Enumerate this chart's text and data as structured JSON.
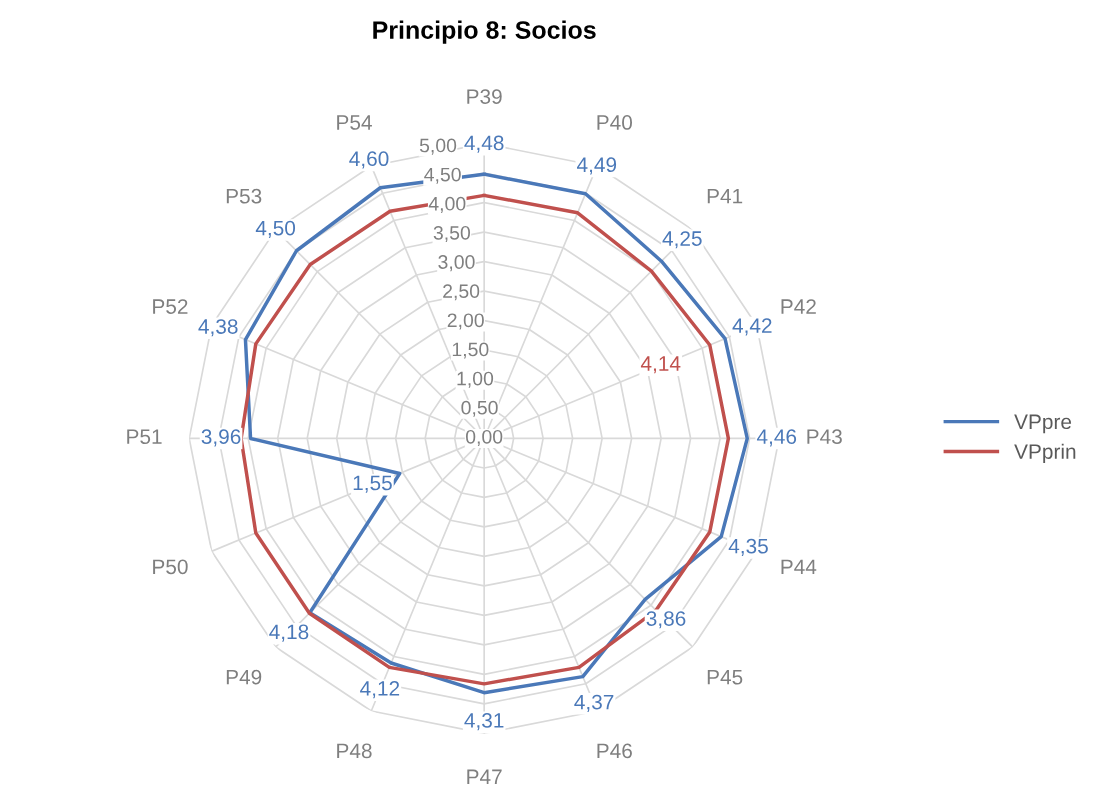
{
  "chart_data": {
    "type": "radar",
    "title": "Principio 8: Socios",
    "categories": [
      "P39",
      "P40",
      "P41",
      "P42",
      "P43",
      "P44",
      "P45",
      "P46",
      "P47",
      "P48",
      "P49",
      "P50",
      "P51",
      "P52",
      "P53",
      "P54"
    ],
    "ylim": [
      0,
      5
    ],
    "yticks": [
      {
        "value": 0,
        "label": "0,00"
      },
      {
        "value": 0.5,
        "label": "0,50"
      },
      {
        "value": 1,
        "label": "1,00"
      },
      {
        "value": 1.5,
        "label": "1,50"
      },
      {
        "value": 2,
        "label": "2,00"
      },
      {
        "value": 2.5,
        "label": "2,50"
      },
      {
        "value": 3,
        "label": "3,00"
      },
      {
        "value": 3.5,
        "label": "3,50"
      },
      {
        "value": 4,
        "label": "4,00"
      },
      {
        "value": 4.5,
        "label": "4,50"
      },
      {
        "value": 5,
        "label": "5,00"
      }
    ],
    "grid": true,
    "legend": "right",
    "marker": "none",
    "line_style": "solid",
    "series": [
      {
        "name": "VPpre",
        "color": "#4a78b8",
        "values": [
          4.48,
          4.49,
          4.25,
          4.42,
          4.46,
          4.35,
          3.86,
          4.37,
          4.31,
          4.12,
          4.18,
          1.55,
          3.96,
          4.38,
          4.5,
          4.6
        ],
        "value_labels": [
          "4,48",
          "4,49",
          "4,25",
          "4,42",
          "4,46",
          "4,35",
          "3,86",
          "4,37",
          "4,31",
          "4,12",
          "4,18",
          "1,55",
          "3,96",
          "4,38",
          "4,50",
          "4,60"
        ]
      },
      {
        "name": "VPprin",
        "color": "#c0504d",
        "values": [
          4.12,
          4.14,
          4.01,
          4.14,
          4.14,
          4.14,
          4.12,
          4.2,
          4.16,
          4.2,
          4.19,
          4.19,
          4.12,
          4.19,
          4.17,
          4.17
        ],
        "value_labels": [
          null,
          null,
          null,
          "4,14",
          null,
          null,
          null,
          null,
          null,
          null,
          null,
          null,
          null,
          null,
          null,
          null
        ]
      }
    ]
  }
}
